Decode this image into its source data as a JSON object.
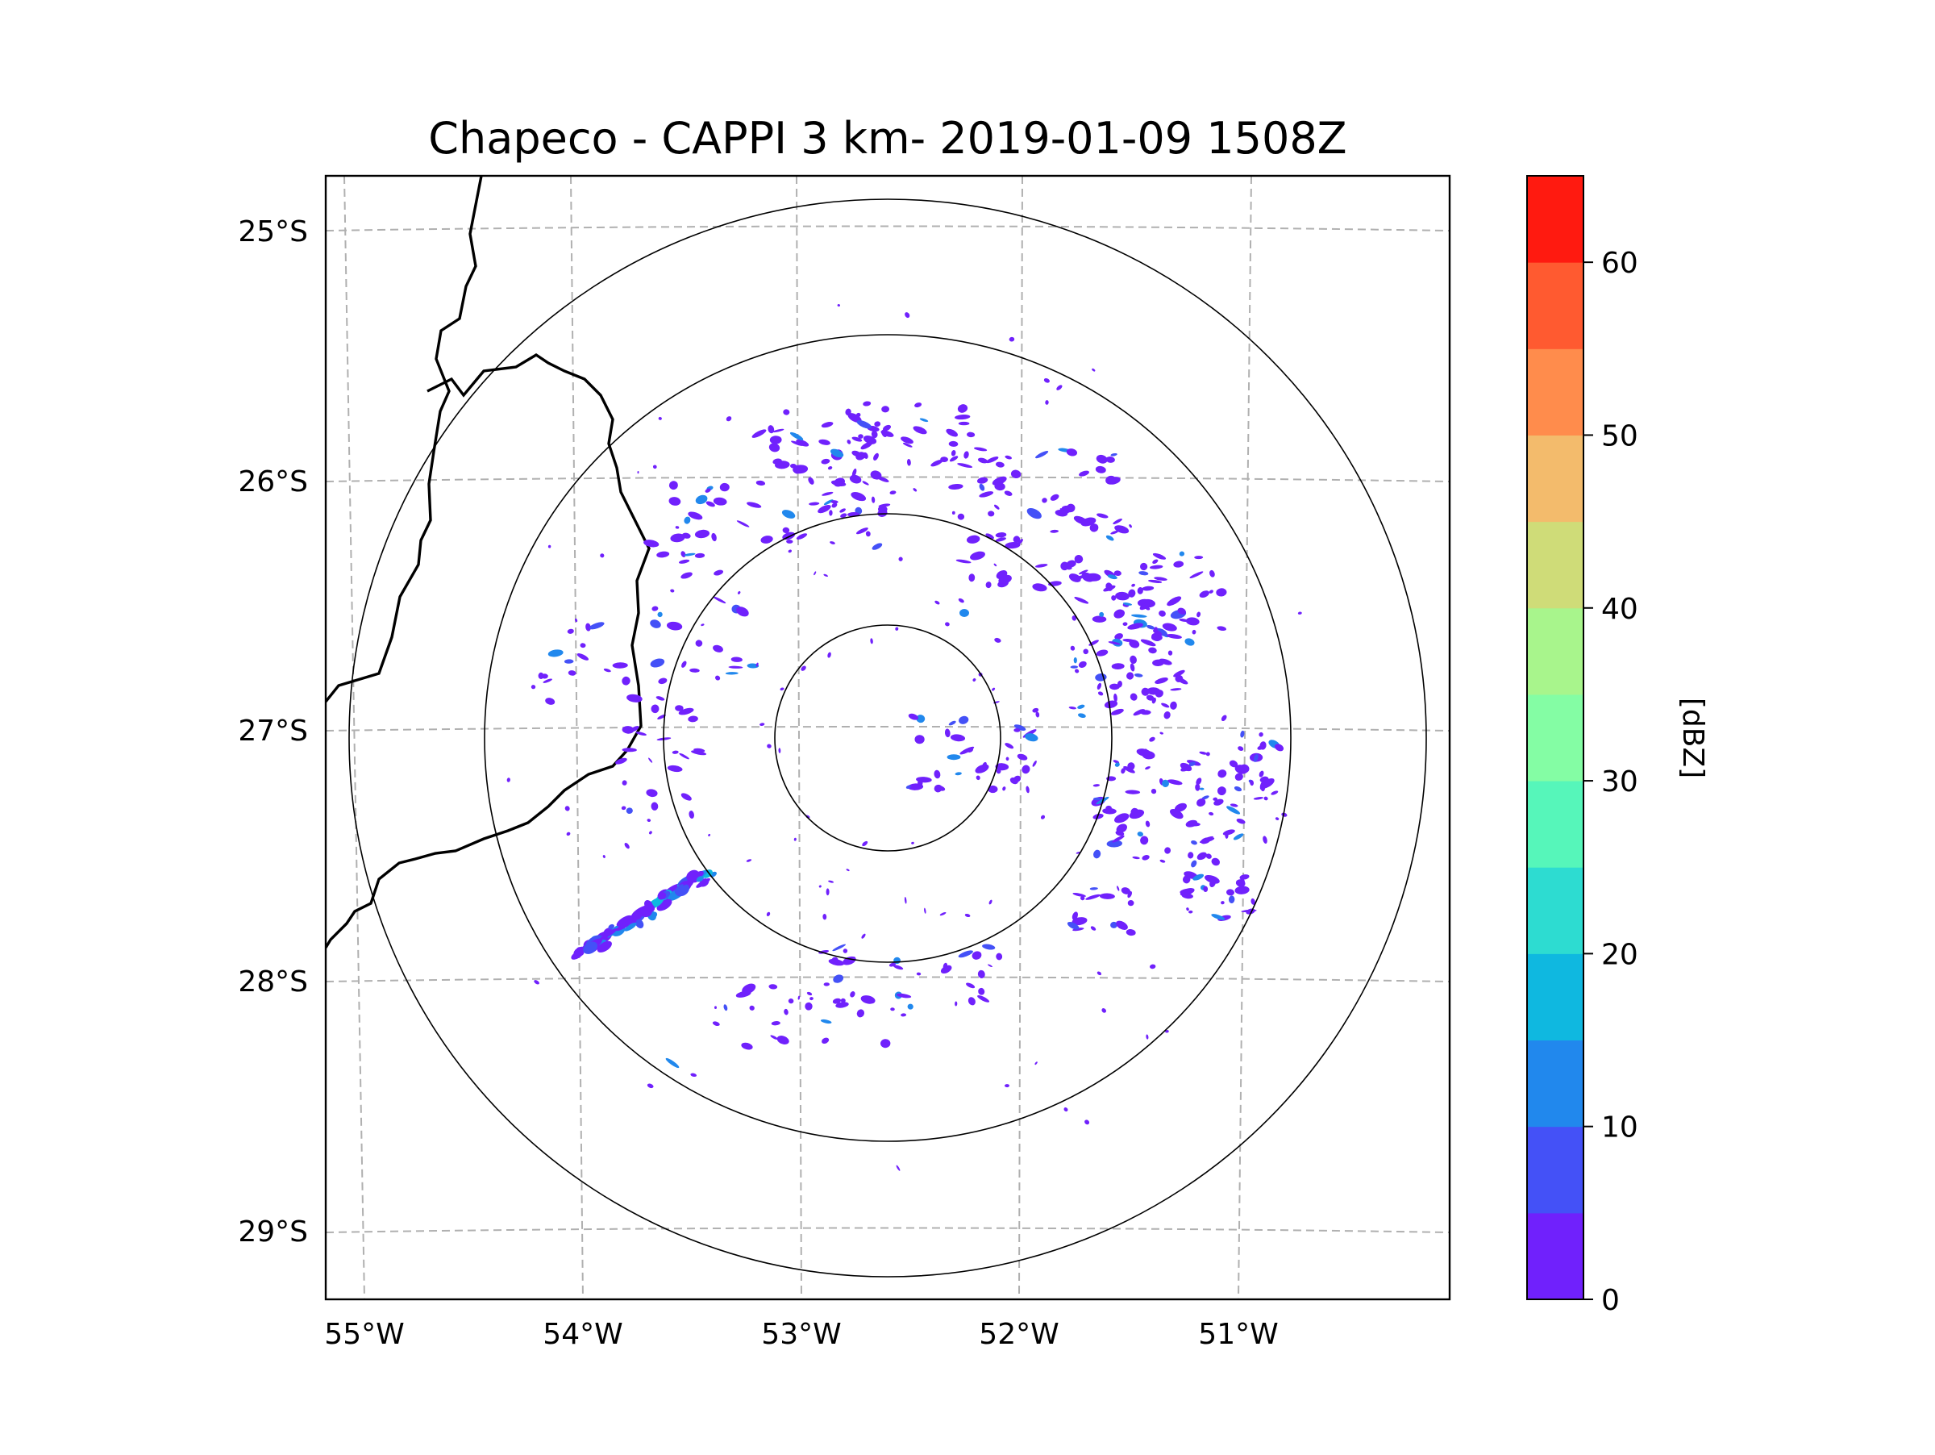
{
  "title": "Chapeco - CAPPI 3 km- 2019-01-09 1508Z",
  "map": {
    "lat_labels": [
      "25°S",
      "26°S",
      "27°S",
      "28°S",
      "29°S"
    ],
    "lon_labels": [
      "55°W",
      "54°W",
      "53°W",
      "52°W",
      "51°W"
    ],
    "radar_site": "Chapeco",
    "cappi_height": "3 km",
    "range_rings": 4
  },
  "colorbar": {
    "label": "[dBZ]",
    "ticks": [
      "0",
      "10",
      "20",
      "30",
      "40",
      "50",
      "60"
    ],
    "tick_values": [
      0,
      10,
      20,
      30,
      40,
      50,
      60
    ],
    "vmin": 0,
    "vmax": 65,
    "colors": [
      "#7021fc",
      "#4451f7",
      "#2188ed",
      "#0fb8e0",
      "#2ddcd1",
      "#56f6ba",
      "#84fda4",
      "#a8f58c",
      "#cfdc78",
      "#f3bb6c",
      "#ff8c4c",
      "#ff5a30",
      "#ff1a10"
    ]
  }
}
